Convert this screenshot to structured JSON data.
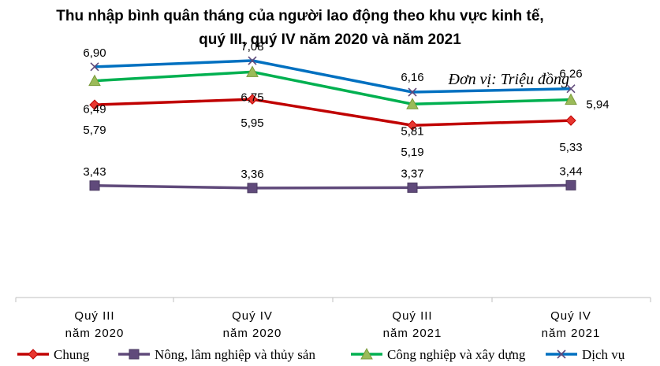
{
  "chart_data": {
    "type": "line",
    "title_line1": "Thu nhập bình quân tháng của người lao động theo khu vực kinh tế,",
    "title_line2": "quý III, quý IV năm 2020 và năm 2021",
    "unit": "Đơn vị: Triệu đồng",
    "categories": [
      [
        "Quý III",
        "năm 2020"
      ],
      [
        "Quý IV",
        "năm 2020"
      ],
      [
        "Quý III",
        "năm 2021"
      ],
      [
        "Quý IV",
        "năm 2021"
      ]
    ],
    "series": [
      {
        "name": "Chung",
        "values": [
          5.79,
          5.95,
          5.19,
          5.33
        ],
        "labels": [
          "5,79",
          "5,95",
          "5,19",
          "5,33"
        ],
        "color": "#C00000",
        "marker": "diamond"
      },
      {
        "name": "Nông, lâm nghiệp và thủy sản",
        "values": [
          3.43,
          3.36,
          3.37,
          3.44
        ],
        "labels": [
          "3,43",
          "3,36",
          "3,37",
          "3,44"
        ],
        "color": "#604A7B",
        "marker": "square"
      },
      {
        "name": "Công nghiệp và xây dựng",
        "values": [
          6.49,
          6.75,
          5.81,
          5.94
        ],
        "labels": [
          "6,49",
          "6,75",
          "5,81",
          "5,94"
        ],
        "color": "#00B050",
        "marker": "triangle"
      },
      {
        "name": "Dịch vụ",
        "values": [
          6.9,
          7.08,
          6.16,
          6.26
        ],
        "labels": [
          "6,90",
          "7,08",
          "6,16",
          "6,26"
        ],
        "color": "#0070C0",
        "marker": "x"
      }
    ],
    "legend_position": "bottom",
    "grid": false
  }
}
